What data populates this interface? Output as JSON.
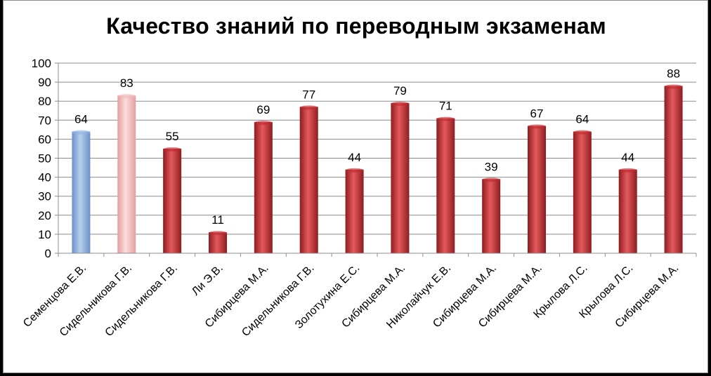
{
  "chart_data": {
    "type": "bar",
    "title": "Качество знаний по переводным экзаменам",
    "xlabel": "",
    "ylabel": "",
    "ylim": [
      0,
      100
    ],
    "yticks": [
      0,
      10,
      20,
      30,
      40,
      50,
      60,
      70,
      80,
      90,
      100
    ],
    "grid": true,
    "categories": [
      "Семенцова Е.В.",
      "Сидельникова Г.В.",
      "Сидельникова Г.В.",
      "Ли Э.В.",
      "Сибирцева М.А.",
      "Сидельникова Г.В.",
      "Золотухина Е.С.",
      "Сибирцева М.А.",
      "Николайчук Е.В.",
      "Сибирцева М.А.",
      "Сибирцева М.А.",
      "Крылова Л.С.",
      "Крылова Л.С.",
      "Сибирцева М.А."
    ],
    "values": [
      64,
      83,
      55,
      11,
      69,
      77,
      44,
      79,
      71,
      39,
      67,
      64,
      44,
      88
    ],
    "bar_colors": [
      "#8fb4e3",
      "#f2b8b8",
      "#c0282d",
      "#c0282d",
      "#c0282d",
      "#c0282d",
      "#c0282d",
      "#c0282d",
      "#c0282d",
      "#c0282d",
      "#c0282d",
      "#c0282d",
      "#c0282d",
      "#c0282d"
    ]
  }
}
